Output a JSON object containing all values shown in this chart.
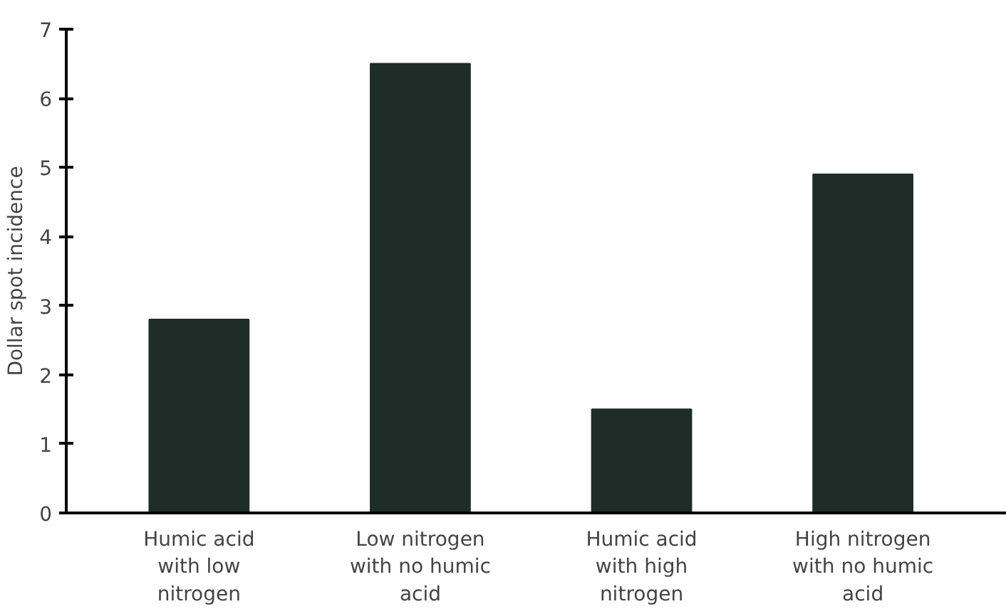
{
  "chart_data": {
    "type": "bar",
    "ylabel": "Dollar spot incidence",
    "categories": [
      "Humic acid with low nitrogen",
      "Low nitrogen with no humic acid",
      "Humic acid with high nitrogen",
      "High nitrogen with no humic acid"
    ],
    "values": [
      2.8,
      6.5,
      1.5,
      4.9
    ],
    "color": "#1f2d29",
    "ylim": [
      0,
      7
    ],
    "yticks": [
      0,
      1,
      2,
      3,
      4,
      5,
      6,
      7
    ],
    "grid": false
  }
}
